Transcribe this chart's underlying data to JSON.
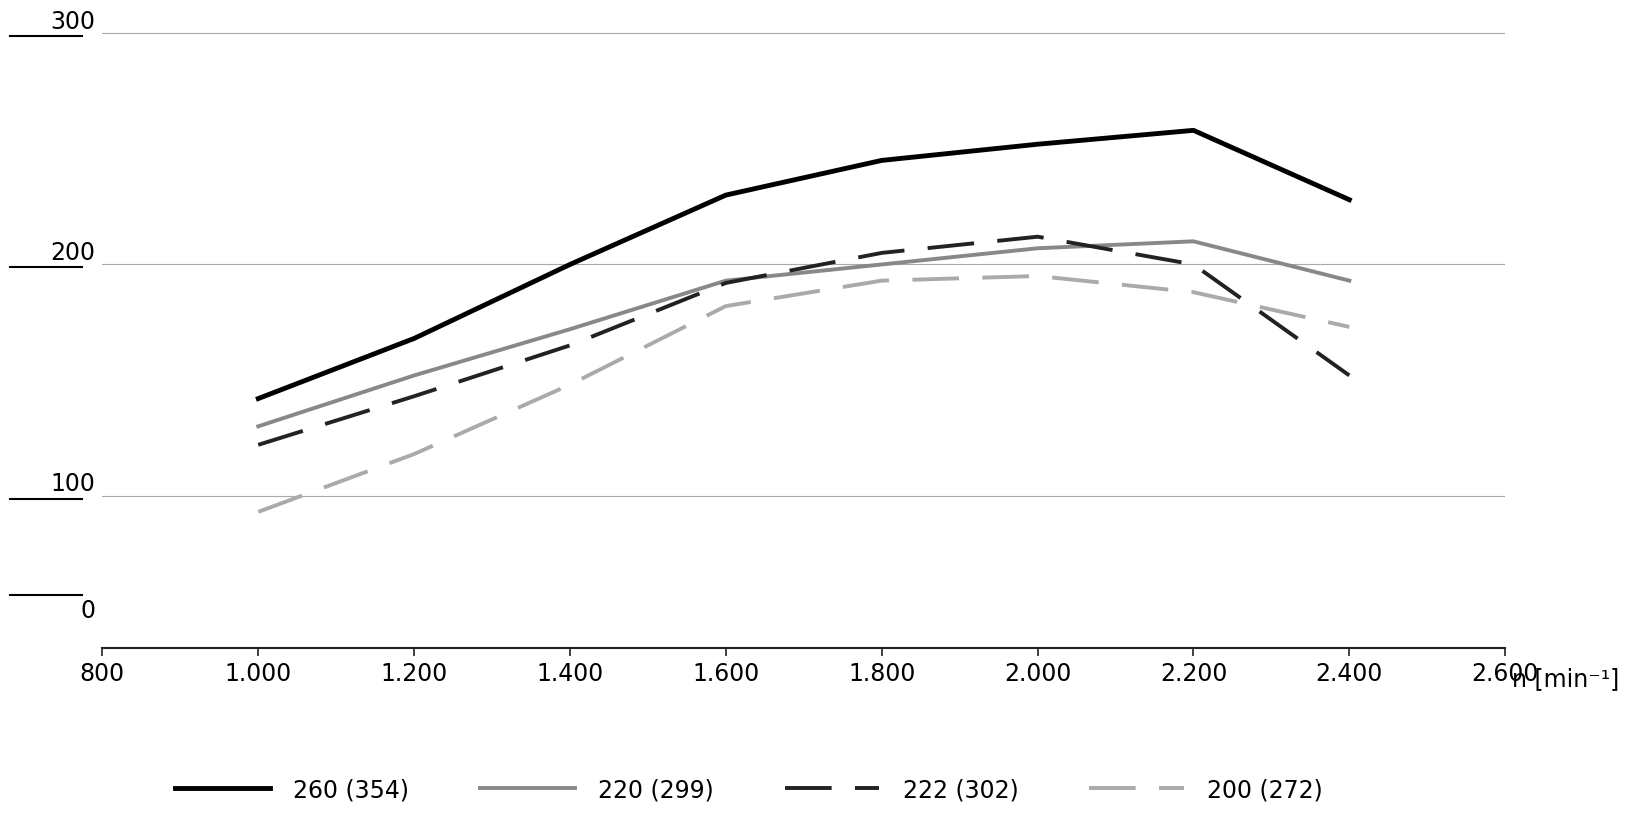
{
  "x": [
    1000,
    1200,
    1400,
    1600,
    1800,
    2000,
    2200,
    2400
  ],
  "series": {
    "260 (354)": {
      "y": [
        142,
        168,
        200,
        230,
        245,
        252,
        258,
        228
      ],
      "color": "#000000",
      "linestyle": "solid",
      "linewidth": 3.5,
      "dashes": null
    },
    "220 (299)": {
      "y": [
        130,
        152,
        172,
        193,
        200,
        207,
        210,
        193
      ],
      "color": "#888888",
      "linestyle": "solid",
      "linewidth": 2.8,
      "dashes": null
    },
    "222 (302)": {
      "y": [
        122,
        143,
        165,
        192,
        205,
        212,
        200,
        152
      ],
      "color": "#222222",
      "linestyle": "dashed",
      "linewidth": 2.8,
      "dashes": [
        12,
        6
      ]
    },
    "200 (272)": {
      "y": [
        93,
        118,
        148,
        182,
        193,
        195,
        188,
        173
      ],
      "color": "#aaaaaa",
      "linestyle": "dashed",
      "linewidth": 2.8,
      "dashes": [
        12,
        6
      ]
    }
  },
  "xlim": [
    800,
    2600
  ],
  "ylim": [
    75,
    310
  ],
  "xticks": [
    800,
    1000,
    1200,
    1400,
    1600,
    1800,
    2000,
    2200,
    2400,
    2600
  ],
  "xtick_labels": [
    "800",
    "1.000",
    "1.200",
    "1.400",
    "1.600",
    "1.800",
    "2.000",
    "2.200",
    "2.400",
    "2.600"
  ],
  "ytick_vals": [
    100,
    200,
    300
  ],
  "ytick_labels": [
    "100",
    "200",
    "300"
  ],
  "hline_color": "#aaaaaa",
  "hline_lw": 0.8,
  "xlabel": "n [min⁻¹]",
  "background_color": "#ffffff",
  "legend_order": [
    "260 (354)",
    "220 (299)",
    "222 (302)",
    "200 (272)"
  ],
  "tick_label_fontsize": 17,
  "ytick_underline_color": "#000000",
  "axis_color": "#222222"
}
